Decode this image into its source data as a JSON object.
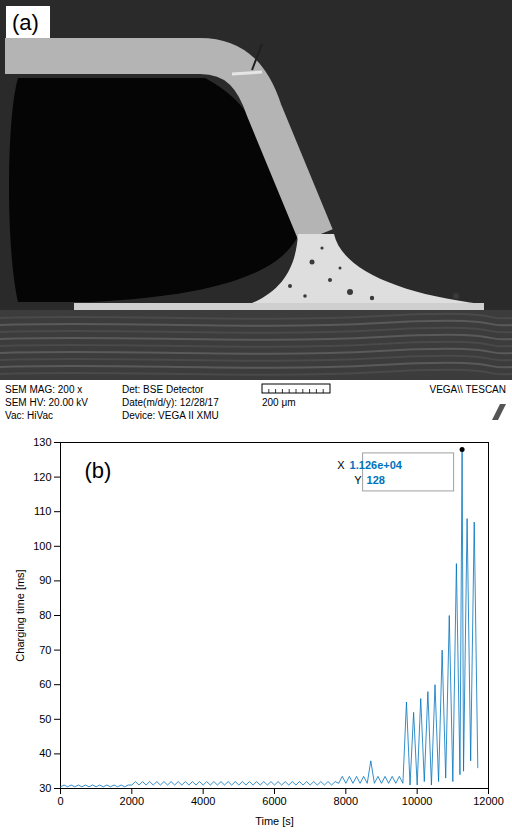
{
  "sem_image": {
    "panel_label": "(a)",
    "footer_left": [
      "SEM MAG: 200 x",
      "SEM HV: 20.00 kV",
      "Vac: HiVac"
    ],
    "footer_middle": [
      "Det: BSE Detector",
      "Date(m/d/y): 12/28/17",
      "Device: VEGA II XMU"
    ],
    "scale_bar": "200 μm",
    "brand": "VEGA\\\\ TESCAN"
  },
  "chart_data": {
    "type": "line",
    "panel_label": "(b)",
    "x_label": "Time [s]",
    "y_label": "Charging time [ms]",
    "color": "#0072bd",
    "x": [
      0,
      100,
      200,
      300,
      400,
      500,
      600,
      700,
      800,
      900,
      1000,
      1100,
      1200,
      1300,
      1400,
      1500,
      1600,
      1700,
      1800,
      1900,
      2000,
      2100,
      2200,
      2300,
      2400,
      2500,
      2600,
      2700,
      2800,
      2900,
      3000,
      3100,
      3200,
      3300,
      3400,
      3500,
      3600,
      3700,
      3800,
      3900,
      4000,
      4100,
      4200,
      4300,
      4400,
      4500,
      4600,
      4700,
      4800,
      4900,
      5000,
      5100,
      5200,
      5300,
      5400,
      5500,
      5600,
      5700,
      5800,
      5900,
      6000,
      6100,
      6200,
      6300,
      6400,
      6500,
      6600,
      6700,
      6800,
      6900,
      7000,
      7100,
      7200,
      7300,
      7400,
      7500,
      7600,
      7700,
      7800,
      7900,
      8000,
      8100,
      8200,
      8300,
      8400,
      8500,
      8600,
      8700,
      8800,
      8900,
      9000,
      9100,
      9200,
      9300,
      9400,
      9500,
      9600,
      9700,
      9800,
      9900,
      10000,
      10100,
      10200,
      10300,
      10400,
      10500,
      10600,
      10700,
      10800,
      10900,
      11000,
      11100,
      11200,
      11260,
      11300,
      11400,
      11500,
      11600,
      11700
    ],
    "values": [
      30.5,
      31,
      30.5,
      31,
      30.5,
      31,
      30.5,
      31,
      30.5,
      31,
      30.5,
      31,
      30.5,
      31,
      30.5,
      31,
      30.5,
      31,
      30.5,
      31,
      31,
      32,
      31,
      32,
      31,
      32,
      31,
      32,
      31,
      32,
      31,
      32,
      31,
      32,
      31,
      32,
      31,
      32,
      31,
      32,
      31,
      32,
      31,
      32,
      31,
      32,
      31,
      32,
      31,
      32,
      31,
      32,
      31,
      32,
      31,
      32,
      31,
      32,
      31,
      32,
      31,
      32,
      31,
      32,
      31,
      32,
      31,
      32,
      31,
      32,
      31,
      32,
      31,
      32,
      31,
      32,
      31,
      32,
      31.5,
      33.5,
      31.5,
      33.5,
      31.5,
      33.5,
      31.5,
      33.5,
      31.5,
      38,
      31.5,
      33.5,
      31.5,
      33.5,
      31.5,
      33.5,
      31.5,
      33.5,
      31.5,
      55,
      31,
      52,
      31,
      56,
      32,
      58,
      31,
      60,
      32,
      70,
      33,
      80,
      32,
      95,
      34,
      128,
      35,
      108,
      38,
      107,
      36
    ],
    "xlim": [
      0,
      12000
    ],
    "ylim": [
      30,
      130
    ],
    "xticks": [
      0,
      2000,
      4000,
      6000,
      8000,
      10000,
      12000
    ],
    "yticks": [
      30,
      40,
      50,
      60,
      70,
      80,
      90,
      100,
      110,
      120,
      130
    ],
    "grid": false,
    "annotations": [
      {
        "x": 11260,
        "y": 128,
        "labels": [
          [
            "X",
            "1.126e+04"
          ],
          [
            "Y",
            "128"
          ]
        ]
      }
    ]
  }
}
